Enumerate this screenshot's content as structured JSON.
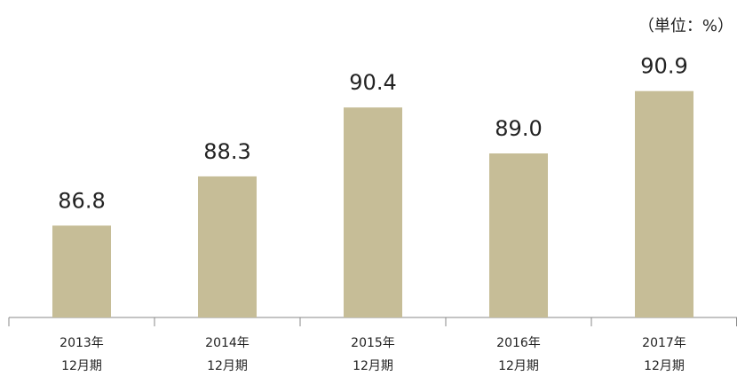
{
  "chart_data": {
    "type": "bar",
    "unit_label": "（単位：%）",
    "categories": [
      [
        "2013年",
        "12月期"
      ],
      [
        "2014年",
        "12月期"
      ],
      [
        "2015年",
        "12月期"
      ],
      [
        "2016年",
        "12月期"
      ],
      [
        "2017年",
        "12月期"
      ]
    ],
    "values": [
      86.8,
      88.3,
      90.4,
      89.0,
      90.9
    ],
    "value_labels": [
      "86.8",
      "88.3",
      "90.4",
      "89.0",
      "90.9"
    ],
    "color": "#c6bd97",
    "ylim": [
      84,
      92
    ]
  }
}
